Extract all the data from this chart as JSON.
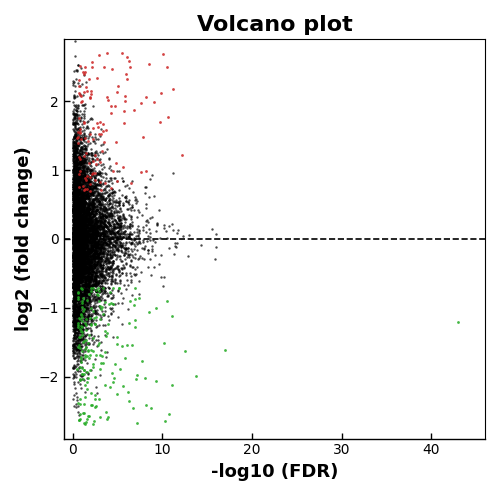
{
  "title": "Volcano plot",
  "xlabel": "-log10 (FDR)",
  "ylabel": "log2 (fold change)",
  "xlim": [
    -1,
    46
  ],
  "ylim": [
    -2.9,
    2.9
  ],
  "xticks": [
    0,
    10,
    20,
    30,
    40
  ],
  "yticks": [
    -2,
    -1,
    0,
    1,
    2
  ],
  "hline_y": 0,
  "background_color": "#ffffff",
  "n_black": 8000,
  "n_red": 120,
  "n_green": 200,
  "seed": 42,
  "point_size": 3,
  "title_fontsize": 16,
  "axis_label_fontsize": 13
}
